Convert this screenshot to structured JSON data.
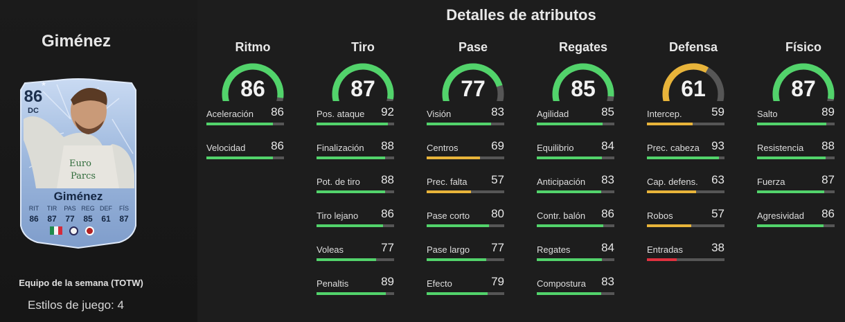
{
  "player": {
    "name": "Giménez",
    "card": {
      "rating": "86",
      "position": "DC",
      "name": "Giménez",
      "stat_labels": [
        "RIT",
        "TIR",
        "PAS",
        "REG",
        "DEF",
        "FÍS"
      ],
      "stat_values": [
        "86",
        "87",
        "77",
        "85",
        "61",
        "87"
      ]
    },
    "team_label": "Equipo de la semana (TOTW)",
    "styles_label": "Estilos de juego: 4"
  },
  "details_title": "Detalles de atributos",
  "colors": {
    "green": "#52d36b",
    "yellow": "#e8b43a",
    "red": "#e0313f",
    "track": "#565656",
    "card_blue": "#9bb6dc"
  },
  "categories": [
    {
      "name": "Ritmo",
      "value": 86,
      "level": "green",
      "attributes": [
        {
          "name": "Aceleración",
          "value": 86,
          "level": "green"
        },
        {
          "name": "Velocidad",
          "value": 86,
          "level": "green"
        }
      ]
    },
    {
      "name": "Tiro",
      "value": 87,
      "level": "green",
      "attributes": [
        {
          "name": "Pos. ataque",
          "value": 92,
          "level": "green"
        },
        {
          "name": "Finalización",
          "value": 88,
          "level": "green"
        },
        {
          "name": "Pot. de tiro",
          "value": 88,
          "level": "green"
        },
        {
          "name": "Tiro lejano",
          "value": 86,
          "level": "green"
        },
        {
          "name": "Voleas",
          "value": 77,
          "level": "green"
        },
        {
          "name": "Penaltis",
          "value": 89,
          "level": "green"
        }
      ]
    },
    {
      "name": "Pase",
      "value": 77,
      "level": "green",
      "attributes": [
        {
          "name": "Visión",
          "value": 83,
          "level": "green"
        },
        {
          "name": "Centros",
          "value": 69,
          "level": "yellow"
        },
        {
          "name": "Prec. falta",
          "value": 57,
          "level": "yellow"
        },
        {
          "name": "Pase corto",
          "value": 80,
          "level": "green"
        },
        {
          "name": "Pase largo",
          "value": 77,
          "level": "green"
        },
        {
          "name": "Efecto",
          "value": 79,
          "level": "green"
        }
      ]
    },
    {
      "name": "Regates",
      "value": 85,
      "level": "green",
      "attributes": [
        {
          "name": "Agilidad",
          "value": 85,
          "level": "green"
        },
        {
          "name": "Equilibrio",
          "value": 84,
          "level": "green"
        },
        {
          "name": "Anticipación",
          "value": 83,
          "level": "green"
        },
        {
          "name": "Contr. balón",
          "value": 86,
          "level": "green"
        },
        {
          "name": "Regates",
          "value": 84,
          "level": "green"
        },
        {
          "name": "Compostura",
          "value": 83,
          "level": "green"
        }
      ]
    },
    {
      "name": "Defensa",
      "value": 61,
      "level": "yellow",
      "attributes": [
        {
          "name": "Intercep.",
          "value": 59,
          "level": "yellow"
        },
        {
          "name": "Prec. cabeza",
          "value": 93,
          "level": "green"
        },
        {
          "name": "Cap. defens.",
          "value": 63,
          "level": "yellow"
        },
        {
          "name": "Robos",
          "value": 57,
          "level": "yellow"
        },
        {
          "name": "Entradas",
          "value": 38,
          "level": "red"
        }
      ]
    },
    {
      "name": "Físico",
      "value": 87,
      "level": "green",
      "attributes": [
        {
          "name": "Salto",
          "value": 89,
          "level": "green"
        },
        {
          "name": "Resistencia",
          "value": 88,
          "level": "green"
        },
        {
          "name": "Fuerza",
          "value": 87,
          "level": "green"
        },
        {
          "name": "Agresividad",
          "value": 86,
          "level": "green"
        }
      ]
    }
  ]
}
